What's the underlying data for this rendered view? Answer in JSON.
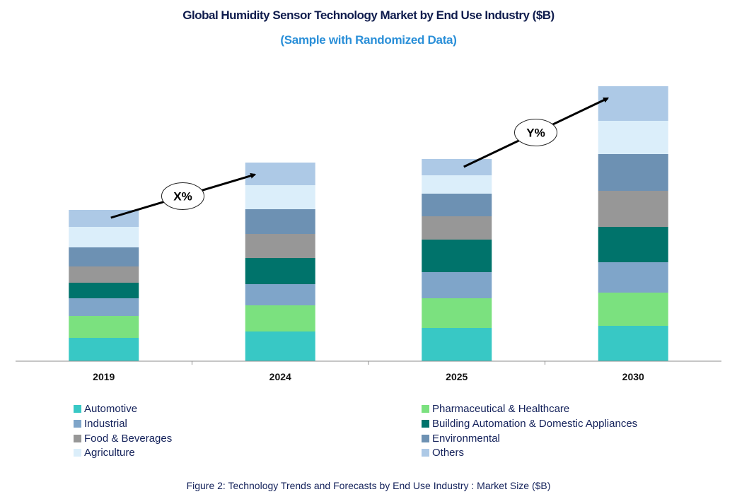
{
  "chart_data": {
    "type": "bar",
    "stacked": true,
    "title": "Global Humidity Sensor Technology Market by End Use Industry ($B)",
    "subtitle": "(Sample with Randomized Data)",
    "xlabel": "",
    "ylabel": "",
    "categories": [
      "2019",
      "2024",
      "2025",
      "2030"
    ],
    "ylim": [
      0,
      41
    ],
    "grid": false,
    "legend_position": "bottom",
    "series": [
      {
        "name": "Automotive",
        "color": "#38c8c5",
        "values": [
          3.3,
          4.2,
          4.7,
          5.0
        ]
      },
      {
        "name": "Pharmaceutical & Healthcare",
        "color": "#7be17f",
        "values": [
          3.1,
          3.7,
          4.2,
          4.7
        ]
      },
      {
        "name": "Industrial",
        "color": "#7fa5c9",
        "values": [
          2.5,
          3.0,
          3.7,
          4.3
        ]
      },
      {
        "name": "Building Automation & Domestic Appliances",
        "color": "#00736b",
        "values": [
          2.2,
          3.7,
          4.6,
          5.0
        ]
      },
      {
        "name": "Food & Beverages",
        "color": "#979797",
        "values": [
          2.3,
          3.4,
          3.3,
          5.1
        ]
      },
      {
        "name": "Environmental",
        "color": "#6d91b3",
        "values": [
          2.7,
          3.5,
          3.2,
          5.2
        ]
      },
      {
        "name": "Agriculture",
        "color": "#dbeefa",
        "values": [
          2.9,
          3.4,
          2.6,
          4.7
        ]
      },
      {
        "name": "Others",
        "color": "#adc9e6",
        "values": [
          2.4,
          3.2,
          2.3,
          4.9
        ]
      }
    ],
    "annotations": [
      {
        "text": "X%",
        "from": "2019",
        "to": "2024"
      },
      {
        "text": "Y%",
        "from": "2025",
        "to": "2030"
      }
    ]
  },
  "legend_order": [
    0,
    1,
    2,
    3,
    4,
    5,
    6,
    7
  ],
  "caption": "Figure 2: Technology  Trends  and Forecasts by  End Use Industry   : Market Size ($B)"
}
